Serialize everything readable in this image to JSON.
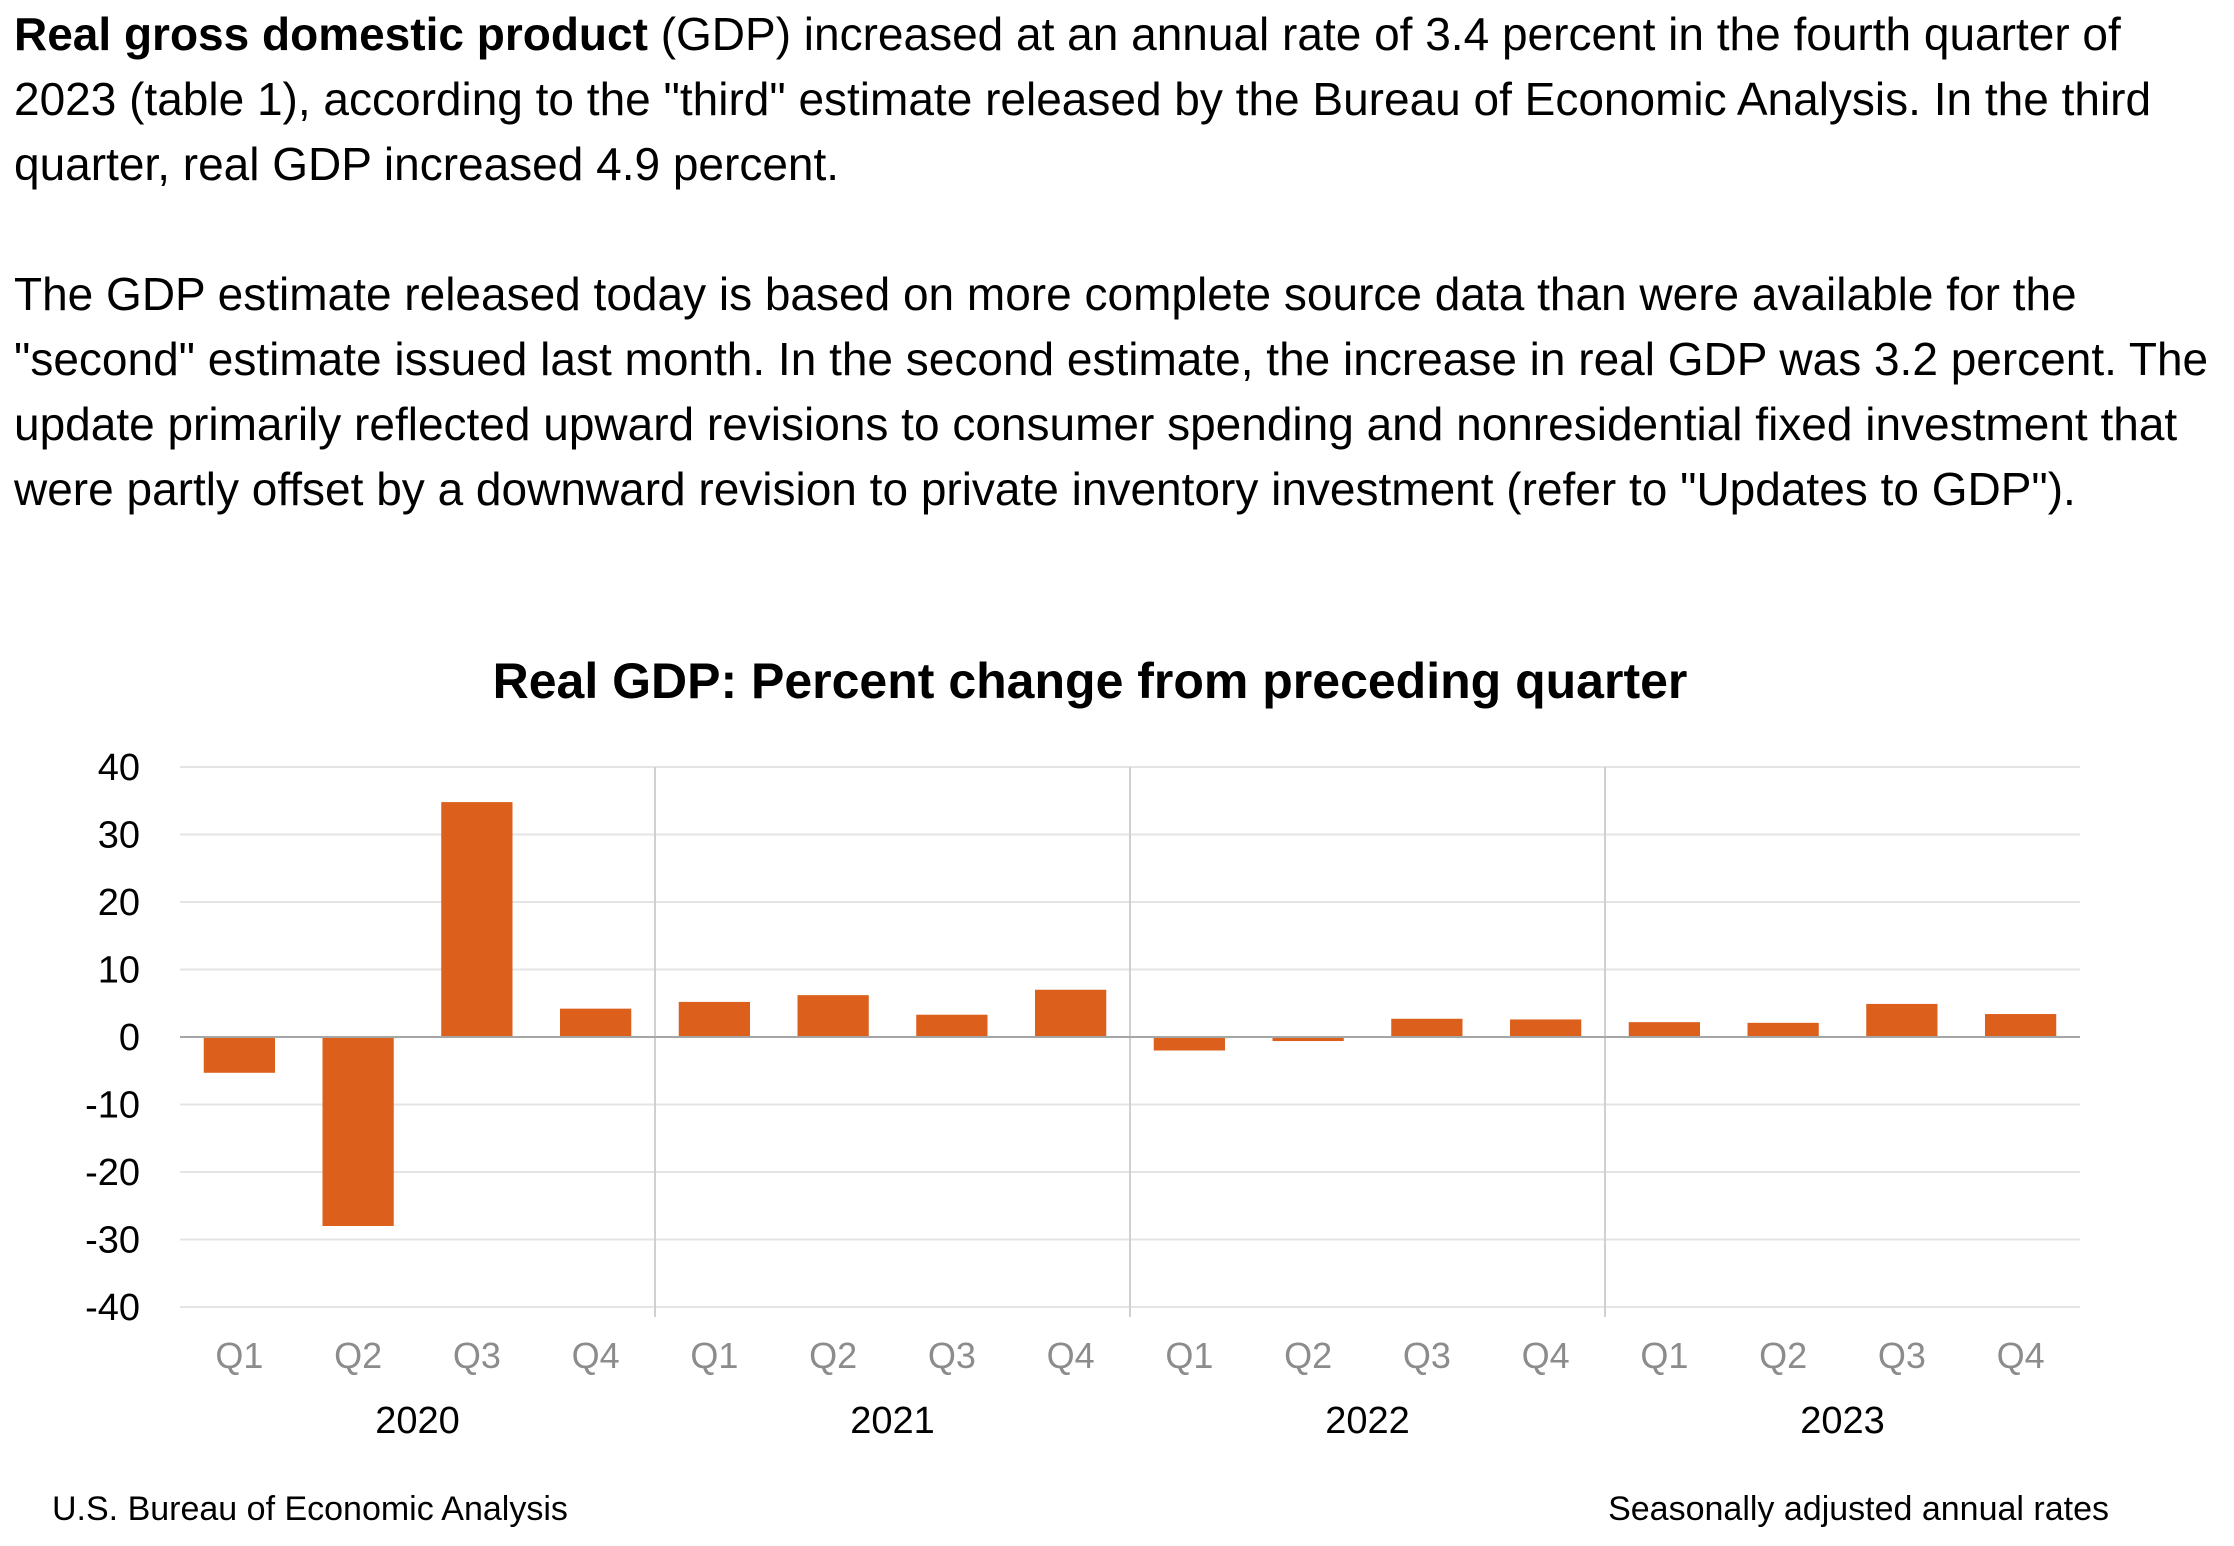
{
  "intro": {
    "para1_bold": "Real gross domestic product",
    "para1_rest": " (GDP) increased at an annual rate of 3.4 percent in the fourth quarter of 2023 (table 1), according to the \"third\" estimate released by the Bureau of Economic Analysis. In the third quarter, real GDP increased 4.9 percent.",
    "para2": "The GDP estimate released today is based on more complete source data than were available for the \"second\" estimate issued last month. In the second estimate, the increase in real GDP was 3.2 percent. The update primarily reflected upward revisions to consumer spending and nonresidential fixed investment that were partly offset by a downward revision to private inventory investment (refer to \"Updates to GDP\")."
  },
  "chart_data": {
    "type": "bar",
    "title": "Real GDP:  Percent change from preceding quarter",
    "xlabel": "",
    "ylabel": "",
    "ylim": [
      -40,
      40
    ],
    "yticks": [
      40,
      30,
      20,
      10,
      0,
      -10,
      -20,
      -30,
      -40
    ],
    "categories": [
      "Q1",
      "Q2",
      "Q3",
      "Q4",
      "Q1",
      "Q2",
      "Q3",
      "Q4",
      "Q1",
      "Q2",
      "Q3",
      "Q4",
      "Q1",
      "Q2",
      "Q3",
      "Q4"
    ],
    "groups": [
      "2020",
      "2021",
      "2022",
      "2023"
    ],
    "values": [
      -5.3,
      -28.0,
      34.8,
      4.2,
      5.2,
      6.2,
      3.3,
      7.0,
      -2.0,
      -0.6,
      2.7,
      2.6,
      2.2,
      2.1,
      4.9,
      3.4
    ],
    "bar_color": "#dc5f1c",
    "grid": true,
    "legend": "none"
  },
  "footer": {
    "source": "U.S. Bureau of Economic Analysis",
    "note": "Seasonally adjusted annual rates"
  }
}
